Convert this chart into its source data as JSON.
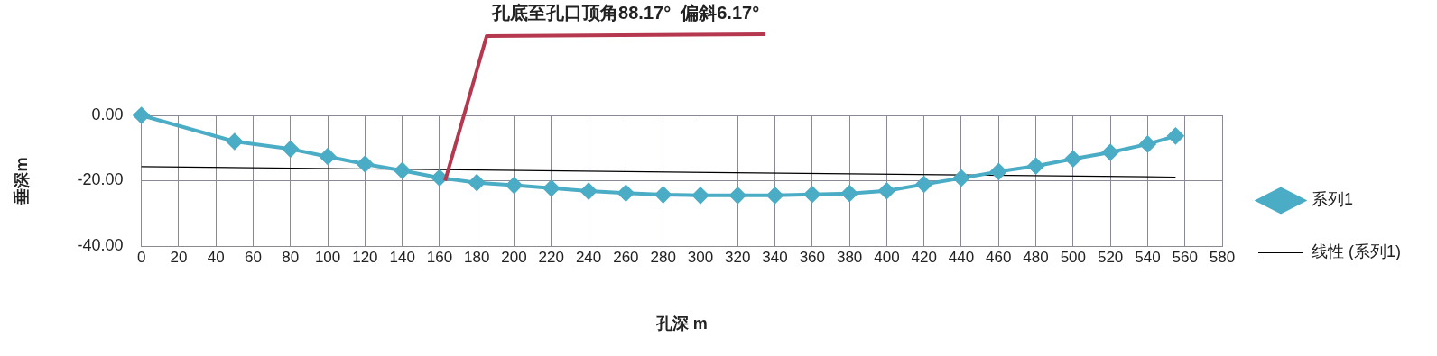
{
  "chart_data": {
    "type": "line",
    "xlabel": "孔深 m",
    "ylabel": "垂深m",
    "xlim": [
      0,
      580
    ],
    "xticks": [
      0,
      20,
      40,
      60,
      80,
      100,
      120,
      140,
      160,
      180,
      200,
      220,
      240,
      260,
      280,
      300,
      320,
      340,
      360,
      380,
      400,
      420,
      440,
      460,
      480,
      500,
      520,
      540,
      560,
      580
    ],
    "ylim": [
      -40,
      0
    ],
    "yticks": [
      {
        "value": -40,
        "label": "-40.00"
      },
      {
        "value": -20,
        "label": "-20.00"
      },
      {
        "value": 0,
        "label": "0.00"
      }
    ],
    "grid": true,
    "legend": "right",
    "marker": "diamond",
    "series": [
      {
        "name": "系列1",
        "color": "#4bacc6",
        "x": [
          0,
          50,
          80,
          100,
          120,
          140,
          160,
          180,
          200,
          220,
          240,
          260,
          280,
          300,
          320,
          340,
          360,
          380,
          400,
          420,
          440,
          460,
          480,
          500,
          520,
          540,
          555
        ],
        "values": [
          0,
          -8.0,
          -10.3,
          -12.6,
          -14.9,
          -16.9,
          -19.1,
          -20.6,
          -21.4,
          -22.3,
          -23.2,
          -23.8,
          -24.3,
          -24.5,
          -24.5,
          -24.5,
          -24.2,
          -23.9,
          -23.1,
          -21.1,
          -19.2,
          -17.2,
          -15.5,
          -13.3,
          -11.3,
          -8.8,
          -6.3
        ]
      },
      {
        "name": "线性 (系列1)",
        "marker": "none",
        "color": "#000000",
        "x": [
          0,
          555
        ],
        "values": [
          -15.7,
          -18.9
        ]
      }
    ],
    "annotations": [
      {
        "text": "孔底至孔口顶角88.17°  偏斜6.17°",
        "x": 163,
        "y": -20
      }
    ]
  }
}
